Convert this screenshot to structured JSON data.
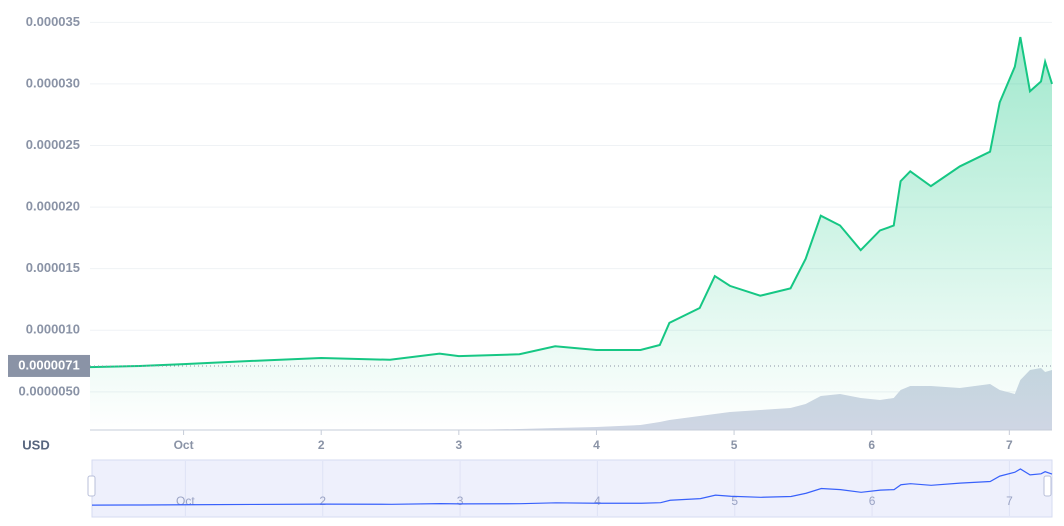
{
  "chart_data": {
    "type": "line",
    "currency": "USD",
    "x": [
      0.32,
      0.68,
      1,
      1.48,
      2,
      2.5,
      2.86,
      3,
      3.44,
      3.7,
      4,
      4.32,
      4.46,
      4.53,
      4.75,
      4.86,
      4.97,
      5.19,
      5.41,
      5.52,
      5.63,
      5.77,
      5.92,
      6.06,
      6.16,
      6.21,
      6.28,
      6.43,
      6.64,
      6.86,
      6.93,
      7.04,
      7.08,
      7.15,
      7.23,
      7.26,
      7.31
    ],
    "series": [
      {
        "color": "#16c784",
        "values": [
          7e-06,
          7.1e-06,
          7.25e-06,
          7.5e-06,
          7.75e-06,
          7.6e-06,
          8.1e-06,
          7.9e-06,
          8.05e-06,
          8.7e-06,
          8.4e-06,
          8.4e-06,
          8.8e-06,
          1.06e-05,
          1.18e-05,
          1.44e-05,
          1.36e-05,
          1.28e-05,
          1.34e-05,
          1.58e-05,
          1.93e-05,
          1.85e-05,
          1.65e-05,
          1.81e-05,
          1.85e-05,
          2.21e-05,
          2.29e-05,
          2.17e-05,
          2.33e-05,
          2.45e-05,
          2.85e-05,
          3.14e-05,
          3.38e-05,
          2.94e-05,
          3.02e-05,
          3.18e-05,
          3e-05
        ]
      }
    ],
    "volume": {
      "color": "#cfd6e4",
      "values": [
        0,
        0,
        0,
        0,
        0,
        0,
        0,
        0,
        1,
        2,
        3,
        5,
        8,
        10,
        14,
        16,
        18,
        20,
        22,
        26,
        34,
        36,
        32,
        30,
        32,
        40,
        44,
        44,
        42,
        46,
        40,
        36,
        50,
        60,
        62,
        58,
        60
      ],
      "vlim": [
        0,
        100
      ]
    },
    "current_price": 7.1e-06,
    "xlim": [
      0.32,
      7.31
    ],
    "xticks": [
      {
        "value": 1,
        "label": "Oct"
      },
      2,
      3,
      4,
      5,
      6,
      7
    ],
    "ylim": [
      1.9e-06,
      3.6e-05
    ],
    "yticks": [
      {
        "value": 5e-06,
        "label": "0.0000050"
      },
      {
        "value": 1e-05,
        "label": "0.000010"
      },
      {
        "value": 1.5e-05,
        "label": "0.000015"
      },
      {
        "value": 2e-05,
        "label": "0.000020"
      },
      {
        "value": 2.5e-05,
        "label": "0.000025"
      },
      {
        "value": 3e-05,
        "label": "0.000030"
      },
      3.5e-05
    ],
    "grid": true
  }
}
